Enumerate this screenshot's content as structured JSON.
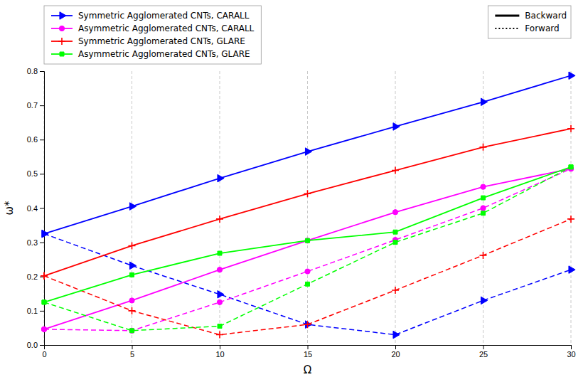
{
  "chart_data": {
    "type": "line",
    "xlabel": "Ω",
    "ylabel": "ω*",
    "x": [
      0,
      5,
      10,
      15,
      20,
      25,
      30
    ],
    "series": [
      {
        "name": "Symmetric Agglomerated CNTs, CARALL",
        "color": "blue",
        "marker": "triangle-right",
        "line_style": "solid",
        "values": [
          0.325,
          0.405,
          0.487,
          0.565,
          0.638,
          0.71,
          0.787
        ]
      },
      {
        "color": "blue",
        "marker": "triangle-right",
        "line_style": "dashed",
        "values": [
          0.325,
          0.232,
          0.148,
          0.06,
          0.03,
          0.13,
          0.22
        ]
      },
      {
        "name": "Asymmetric Agglomerated CNTs, CARALL",
        "color": "magenta",
        "marker": "circle",
        "line_style": "solid",
        "values": [
          0.046,
          0.13,
          0.22,
          0.305,
          0.388,
          0.462,
          0.515
        ]
      },
      {
        "color": "magenta",
        "marker": "circle",
        "line_style": "dashed",
        "values": [
          0.046,
          0.042,
          0.125,
          0.215,
          0.307,
          0.4,
          0.515
        ]
      },
      {
        "name": "Symmetric Agglomerated CNTs, GLARE",
        "color": "red",
        "marker": "plus",
        "line_style": "solid",
        "values": [
          0.202,
          0.29,
          0.368,
          0.442,
          0.51,
          0.578,
          0.632
        ]
      },
      {
        "color": "red",
        "marker": "plus",
        "line_style": "dashed",
        "values": [
          0.202,
          0.1,
          0.03,
          0.06,
          0.16,
          0.262,
          0.368
        ]
      },
      {
        "name": "Asymmetric Agglomerated CNTs, GLARE",
        "color": "lime",
        "marker": "square",
        "line_style": "solid",
        "values": [
          0.125,
          0.205,
          0.268,
          0.305,
          0.33,
          0.43,
          0.52
        ]
      },
      {
        "color": "lime",
        "marker": "square",
        "line_style": "dashed",
        "values": [
          0.125,
          0.042,
          0.055,
          0.178,
          0.3,
          0.385,
          0.52
        ]
      }
    ],
    "style_legend": [
      {
        "name": "Backward",
        "line_style": "solid"
      },
      {
        "name": "Forward",
        "line_style": "dotted"
      }
    ],
    "xlim": [
      0,
      30
    ],
    "ylim": [
      0,
      0.8
    ],
    "xticks": [
      0,
      5,
      10,
      15,
      20,
      25,
      30
    ],
    "yticks": [
      {
        "value": 0,
        "label": "0.0"
      },
      0.1,
      0.2,
      0.3,
      0.4,
      0.5,
      0.6,
      0.7,
      0.8
    ],
    "grid": "x",
    "legend": "top"
  }
}
